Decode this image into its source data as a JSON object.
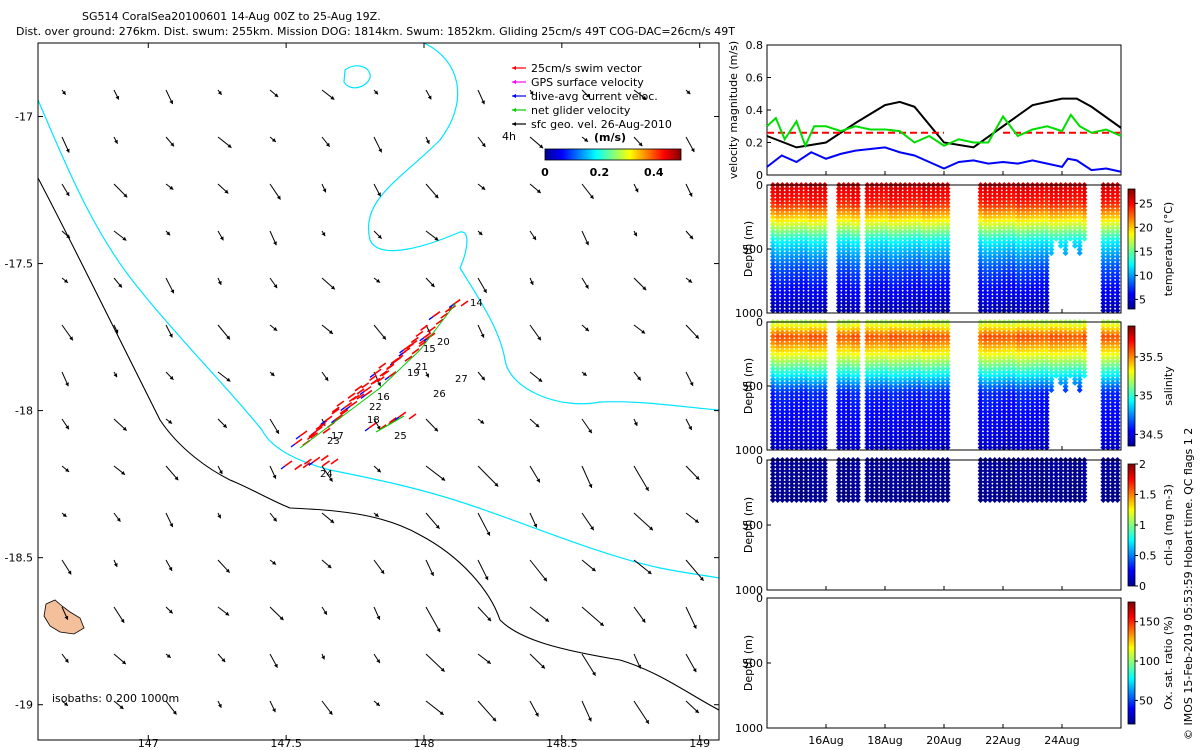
{
  "header": {
    "line1": "SG514 CoralSea20100601 14-Aug 00Z to 25-Aug 19Z.",
    "line2": "Dist. over ground: 276km. Dist. swum: 255km. Mission DOG: 1814km. Swum: 1852km. Gliding 25cm/s 49T COG-DAC=26cm/s 49T"
  },
  "map": {
    "x_ticks": [
      "147",
      "147.5",
      "148",
      "148.5",
      "149"
    ],
    "y_ticks": [
      "-17",
      "-17.5",
      "-18",
      "-18.5",
      "-19"
    ],
    "xlim": [
      146.6,
      149.07
    ],
    "ylim": [
      -19.12,
      -16.75
    ],
    "legend": {
      "items": [
        {
          "label": "25cm/s swim vector",
          "color": "#ff0000"
        },
        {
          "label": "GPS surface velocity",
          "color": "#ff00ff"
        },
        {
          "label": "dive-avg current veloc.",
          "color": "#0000ff"
        },
        {
          "label": "net glider velocity",
          "color": "#00cc00"
        },
        {
          "label": "sfc geo. vel. 26-Aug-2010",
          "color": "#000000"
        }
      ],
      "note": "4h",
      "colorbar_title": "(m/s)",
      "colorbar_ticks": [
        "0",
        "0.2",
        "0.4"
      ]
    },
    "isobaths_label": "isobaths: 0   200  1000m",
    "track_labels": [
      "14",
      "15",
      "20",
      "19",
      "21",
      "27",
      "26",
      "16",
      "22",
      "18",
      "17",
      "23",
      "25",
      "24"
    ]
  },
  "velocity_panel": {
    "ylabel": "velocity magnitude (m/s)",
    "y_ticks": [
      "0",
      "0.2",
      "0.4",
      "0.6",
      "0.8"
    ],
    "ylim": [
      0,
      0.8
    ],
    "series": [
      {
        "color": "#000000",
        "x": [
          14,
          15,
          16,
          17,
          18,
          18.5,
          19,
          20,
          21,
          22,
          23,
          24,
          24.5,
          25,
          26
        ],
        "y": [
          0.24,
          0.17,
          0.2,
          0.32,
          0.43,
          0.45,
          0.42,
          0.2,
          0.17,
          0.3,
          0.43,
          0.47,
          0.47,
          0.42,
          0.29
        ]
      },
      {
        "color": "#ff0000",
        "dashed": true,
        "x": [
          14,
          20
        ],
        "y": [
          0.26,
          0.26
        ]
      },
      {
        "color": "#ff0000",
        "dashed": true,
        "x": [
          22,
          26
        ],
        "y": [
          0.26,
          0.26
        ]
      },
      {
        "color": "#00dd00",
        "x": [
          14,
          14.3,
          14.6,
          15,
          15.3,
          15.6,
          16,
          16.5,
          17,
          17.5,
          18,
          18.5,
          19,
          19.5,
          20,
          20.5,
          21,
          21.5,
          22,
          22.5,
          23,
          23.5,
          24,
          24.3,
          24.6,
          25,
          25.5,
          26
        ],
        "y": [
          0.3,
          0.35,
          0.22,
          0.33,
          0.18,
          0.3,
          0.3,
          0.27,
          0.3,
          0.28,
          0.28,
          0.27,
          0.2,
          0.24,
          0.18,
          0.22,
          0.2,
          0.2,
          0.36,
          0.24,
          0.28,
          0.3,
          0.27,
          0.37,
          0.3,
          0.26,
          0.28,
          0.24
        ]
      },
      {
        "color": "#0000ff",
        "x": [
          14,
          14.5,
          15,
          15.5,
          16,
          16.5,
          17,
          17.5,
          18,
          18.5,
          19,
          19.5,
          20,
          20.5,
          21,
          21.5,
          22,
          22.5,
          23,
          23.5,
          24,
          24.2,
          24.5,
          25,
          25.5,
          26
        ],
        "y": [
          0.05,
          0.12,
          0.08,
          0.14,
          0.1,
          0.13,
          0.15,
          0.16,
          0.17,
          0.14,
          0.12,
          0.08,
          0.04,
          0.08,
          0.09,
          0.07,
          0.08,
          0.07,
          0.09,
          0.07,
          0.05,
          0.1,
          0.09,
          0.03,
          0.04,
          0.02
        ]
      }
    ]
  },
  "section_panels": [
    {
      "ylabel": "Depth (m)",
      "cbar_label": "temperature (°C)",
      "cbar_ticks": [
        "5",
        "10",
        "15",
        "20",
        "25"
      ],
      "crange": [
        3,
        28
      ],
      "y_ticks": [
        "0",
        "500",
        "1000"
      ],
      "profile": [
        [
          0,
          26
        ],
        [
          150,
          24
        ],
        [
          300,
          18
        ],
        [
          450,
          12
        ],
        [
          650,
          8
        ],
        [
          1000,
          4
        ]
      ]
    },
    {
      "ylabel": "Depth (m)",
      "cbar_label": "salinity",
      "cbar_ticks": [
        "34.5",
        "35",
        "35.5"
      ],
      "crange": [
        34.35,
        35.9
      ],
      "y_ticks": [
        "0",
        "500",
        "1000"
      ],
      "profile": [
        [
          0,
          35.2
        ],
        [
          120,
          35.6
        ],
        [
          300,
          35.2
        ],
        [
          550,
          34.6
        ],
        [
          1000,
          34.45
        ]
      ]
    },
    {
      "ylabel": "Depth (m)",
      "cbar_label": "chl-a (mg m-3)",
      "cbar_ticks": [
        "0",
        "0.5",
        "1",
        "1.5",
        "2"
      ],
      "crange": [
        0,
        2
      ],
      "y_ticks": [
        "0",
        "500",
        "1000"
      ],
      "profile": [
        [
          0,
          0.05
        ],
        [
          300,
          0.02
        ]
      ]
    },
    {
      "ylabel": "Depth (m)",
      "cbar_label": "Ox. sat. ratio (%)",
      "cbar_ticks": [
        "50",
        "100",
        "150"
      ],
      "crange": [
        20,
        175
      ],
      "y_ticks": [
        "0",
        "500",
        "1000"
      ],
      "profile": []
    }
  ],
  "x_axis": {
    "ticks": [
      "16Aug",
      "18Aug",
      "20Aug",
      "22Aug",
      "24Aug"
    ],
    "values": [
      16,
      18,
      20,
      22,
      24
    ],
    "xlim": [
      14,
      26
    ]
  },
  "side_note": "© IMOS 15-Feb-2019 05:53:59 Hobart time. QC flags 1  2",
  "colors": {
    "coast": "#000000",
    "isobath_200": "#00e5ff",
    "land": "#f4bf9b"
  }
}
